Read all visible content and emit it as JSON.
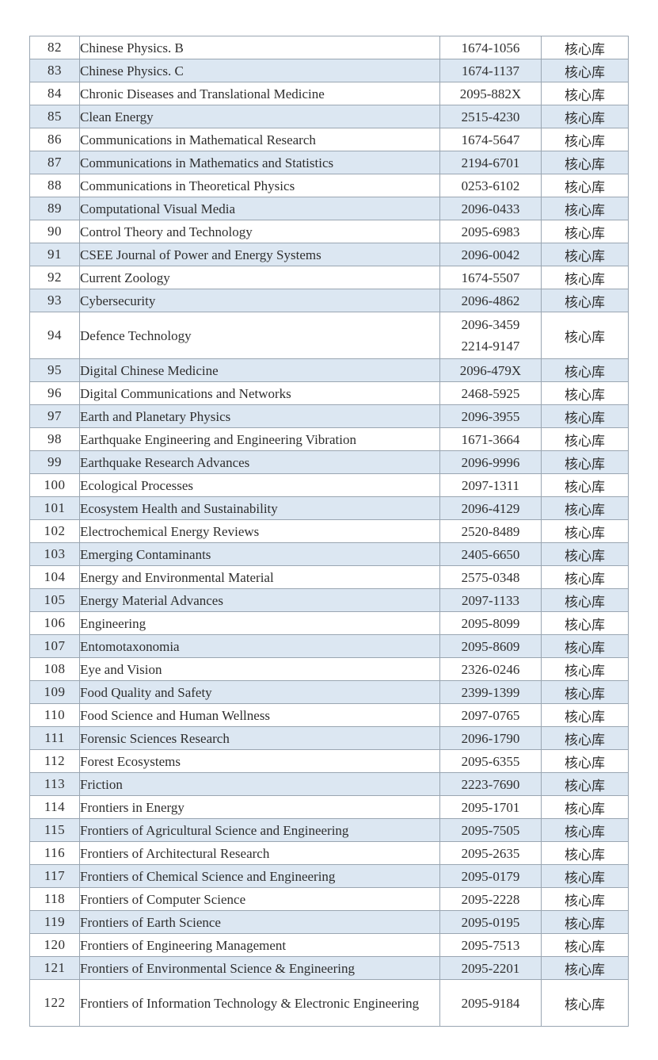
{
  "colors": {
    "row_alt": "#dce7f2",
    "border": "#9aa6b2",
    "text": "#2e2e2e"
  },
  "table": {
    "rows": [
      {
        "no": "82",
        "name": "Chinese Physics. B",
        "issn": [
          "1674-1056"
        ],
        "status": "核心库"
      },
      {
        "no": "83",
        "name": "Chinese Physics. C",
        "issn": [
          "1674-1137"
        ],
        "status": "核心库"
      },
      {
        "no": "84",
        "name": "Chronic Diseases and Translational Medicine",
        "issn": [
          "2095-882X"
        ],
        "status": "核心库"
      },
      {
        "no": "85",
        "name": "Clean Energy",
        "issn": [
          "2515-4230"
        ],
        "status": "核心库"
      },
      {
        "no": "86",
        "name": "Communications in Mathematical Research",
        "issn": [
          "1674-5647"
        ],
        "status": "核心库"
      },
      {
        "no": "87",
        "name": "Communications in Mathematics and Statistics",
        "issn": [
          "2194-6701"
        ],
        "status": "核心库"
      },
      {
        "no": "88",
        "name": "Communications in Theoretical Physics",
        "issn": [
          "0253-6102"
        ],
        "status": "核心库"
      },
      {
        "no": "89",
        "name": "Computational Visual Media",
        "issn": [
          "2096-0433"
        ],
        "status": "核心库"
      },
      {
        "no": "90",
        "name": "Control Theory and Technology",
        "issn": [
          "2095-6983"
        ],
        "status": "核心库"
      },
      {
        "no": "91",
        "name": "CSEE Journal of Power and Energy Systems",
        "issn": [
          "2096-0042"
        ],
        "status": "核心库"
      },
      {
        "no": "92",
        "name": "Current Zoology",
        "issn": [
          "1674-5507"
        ],
        "status": "核心库"
      },
      {
        "no": "93",
        "name": "Cybersecurity",
        "issn": [
          "2096-4862"
        ],
        "status": "核心库"
      },
      {
        "no": "94",
        "name": "Defence Technology",
        "issn": [
          "2096-3459",
          "2214-9147"
        ],
        "status": "核心库"
      },
      {
        "no": "95",
        "name": "Digital Chinese Medicine",
        "issn": [
          "2096-479X"
        ],
        "status": "核心库"
      },
      {
        "no": "96",
        "name": "Digital Communications and Networks",
        "issn": [
          "2468-5925"
        ],
        "status": "核心库"
      },
      {
        "no": "97",
        "name": "Earth and Planetary Physics",
        "issn": [
          "2096-3955"
        ],
        "status": "核心库"
      },
      {
        "no": "98",
        "name": "Earthquake Engineering and Engineering Vibration",
        "issn": [
          "1671-3664"
        ],
        "status": "核心库"
      },
      {
        "no": "99",
        "name": "Earthquake Research Advances",
        "issn": [
          "2096-9996"
        ],
        "status": "核心库"
      },
      {
        "no": "100",
        "name": "Ecological Processes",
        "issn": [
          "2097-1311"
        ],
        "status": "核心库"
      },
      {
        "no": "101",
        "name": "Ecosystem Health and Sustainability",
        "issn": [
          "2096-4129"
        ],
        "status": "核心库"
      },
      {
        "no": "102",
        "name": "Electrochemical Energy Reviews",
        "issn": [
          "2520-8489"
        ],
        "status": "核心库"
      },
      {
        "no": "103",
        "name": "Emerging Contaminants",
        "issn": [
          "2405-6650"
        ],
        "status": "核心库"
      },
      {
        "no": "104",
        "name": "Energy and Environmental Material",
        "issn": [
          "2575-0348"
        ],
        "status": "核心库"
      },
      {
        "no": "105",
        "name": "Energy Material Advances",
        "issn": [
          "2097-1133"
        ],
        "status": "核心库"
      },
      {
        "no": "106",
        "name": "Engineering",
        "issn": [
          "2095-8099"
        ],
        "status": "核心库"
      },
      {
        "no": "107",
        "name": "Entomotaxonomia",
        "issn": [
          "2095-8609"
        ],
        "status": "核心库"
      },
      {
        "no": "108",
        "name": "Eye and Vision",
        "issn": [
          "2326-0246"
        ],
        "status": "核心库"
      },
      {
        "no": "109",
        "name": "Food Quality and Safety",
        "issn": [
          "2399-1399"
        ],
        "status": "核心库"
      },
      {
        "no": "110",
        "name": "Food Science and Human Wellness",
        "issn": [
          "2097-0765"
        ],
        "status": "核心库"
      },
      {
        "no": "111",
        "name": "Forensic Sciences Research",
        "issn": [
          "2096-1790"
        ],
        "status": "核心库"
      },
      {
        "no": "112",
        "name": "Forest Ecosystems",
        "issn": [
          "2095-6355"
        ],
        "status": "核心库"
      },
      {
        "no": "113",
        "name": "Friction",
        "issn": [
          "2223-7690"
        ],
        "status": "核心库"
      },
      {
        "no": "114",
        "name": "Frontiers in Energy",
        "issn": [
          "2095-1701"
        ],
        "status": "核心库"
      },
      {
        "no": "115",
        "name": "Frontiers of Agricultural Science and Engineering",
        "issn": [
          "2095-7505"
        ],
        "status": "核心库"
      },
      {
        "no": "116",
        "name": "Frontiers of Architectural Research",
        "issn": [
          "2095-2635"
        ],
        "status": "核心库"
      },
      {
        "no": "117",
        "name": "Frontiers of Chemical Science and Engineering",
        "issn": [
          "2095-0179"
        ],
        "status": "核心库"
      },
      {
        "no": "118",
        "name": "Frontiers of Computer Science",
        "issn": [
          "2095-2228"
        ],
        "status": "核心库"
      },
      {
        "no": "119",
        "name": "Frontiers of Earth Science",
        "issn": [
          "2095-0195"
        ],
        "status": "核心库"
      },
      {
        "no": "120",
        "name": "Frontiers of Engineering Management",
        "issn": [
          "2095-7513"
        ],
        "status": "核心库"
      },
      {
        "no": "121",
        "name": "Frontiers of Environmental Science & Engineering",
        "issn": [
          "2095-2201"
        ],
        "status": "核心库"
      },
      {
        "no": "122",
        "name": "Frontiers of Information Technology & Electronic Engineering",
        "issn": [
          "2095-9184"
        ],
        "status": "核心库"
      }
    ]
  }
}
